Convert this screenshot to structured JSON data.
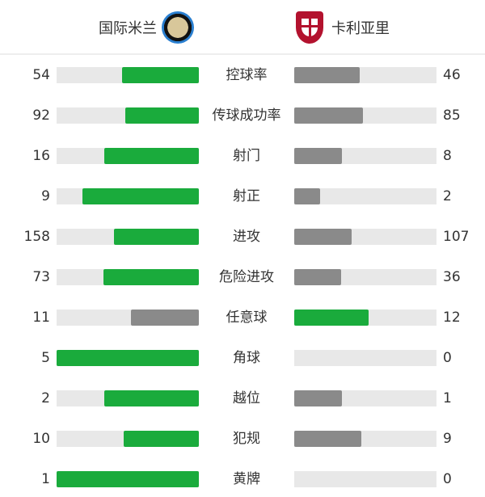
{
  "header": {
    "home_team": "国际米兰",
    "away_team": "卡利亚里",
    "home_logo": "inter-milan-crest",
    "away_logo": "cagliari-crest"
  },
  "colors": {
    "leader": "#1aab3c",
    "trailer": "#8a8a8a",
    "track": "#e8e8e8"
  },
  "stats": [
    {
      "label": "控球率",
      "home": 54,
      "away": 46
    },
    {
      "label": "传球成功率",
      "home": 92,
      "away": 85
    },
    {
      "label": "射门",
      "home": 16,
      "away": 8
    },
    {
      "label": "射正",
      "home": 9,
      "away": 2
    },
    {
      "label": "进攻",
      "home": 158,
      "away": 107
    },
    {
      "label": "危险进攻",
      "home": 73,
      "away": 36
    },
    {
      "label": "任意球",
      "home": 11,
      "away": 12
    },
    {
      "label": "角球",
      "home": 5,
      "away": 0
    },
    {
      "label": "越位",
      "home": 2,
      "away": 1
    },
    {
      "label": "犯规",
      "home": 10,
      "away": 9
    },
    {
      "label": "黄牌",
      "home": 1,
      "away": 0
    }
  ]
}
